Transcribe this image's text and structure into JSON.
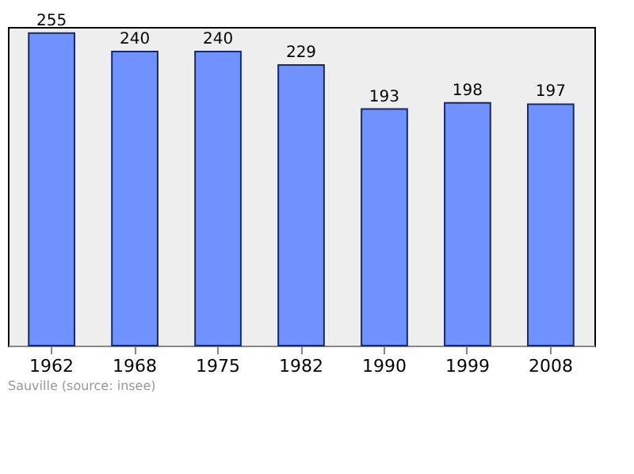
{
  "chart_data": {
    "type": "bar",
    "categories": [
      "1962",
      "1968",
      "1975",
      "1982",
      "1990",
      "1999",
      "2008"
    ],
    "values": [
      255,
      240,
      240,
      229,
      193,
      198,
      197
    ],
    "color": "#7092ff",
    "data_labels": true,
    "annotations": [
      "Sauville   (source: insee)"
    ]
  }
}
